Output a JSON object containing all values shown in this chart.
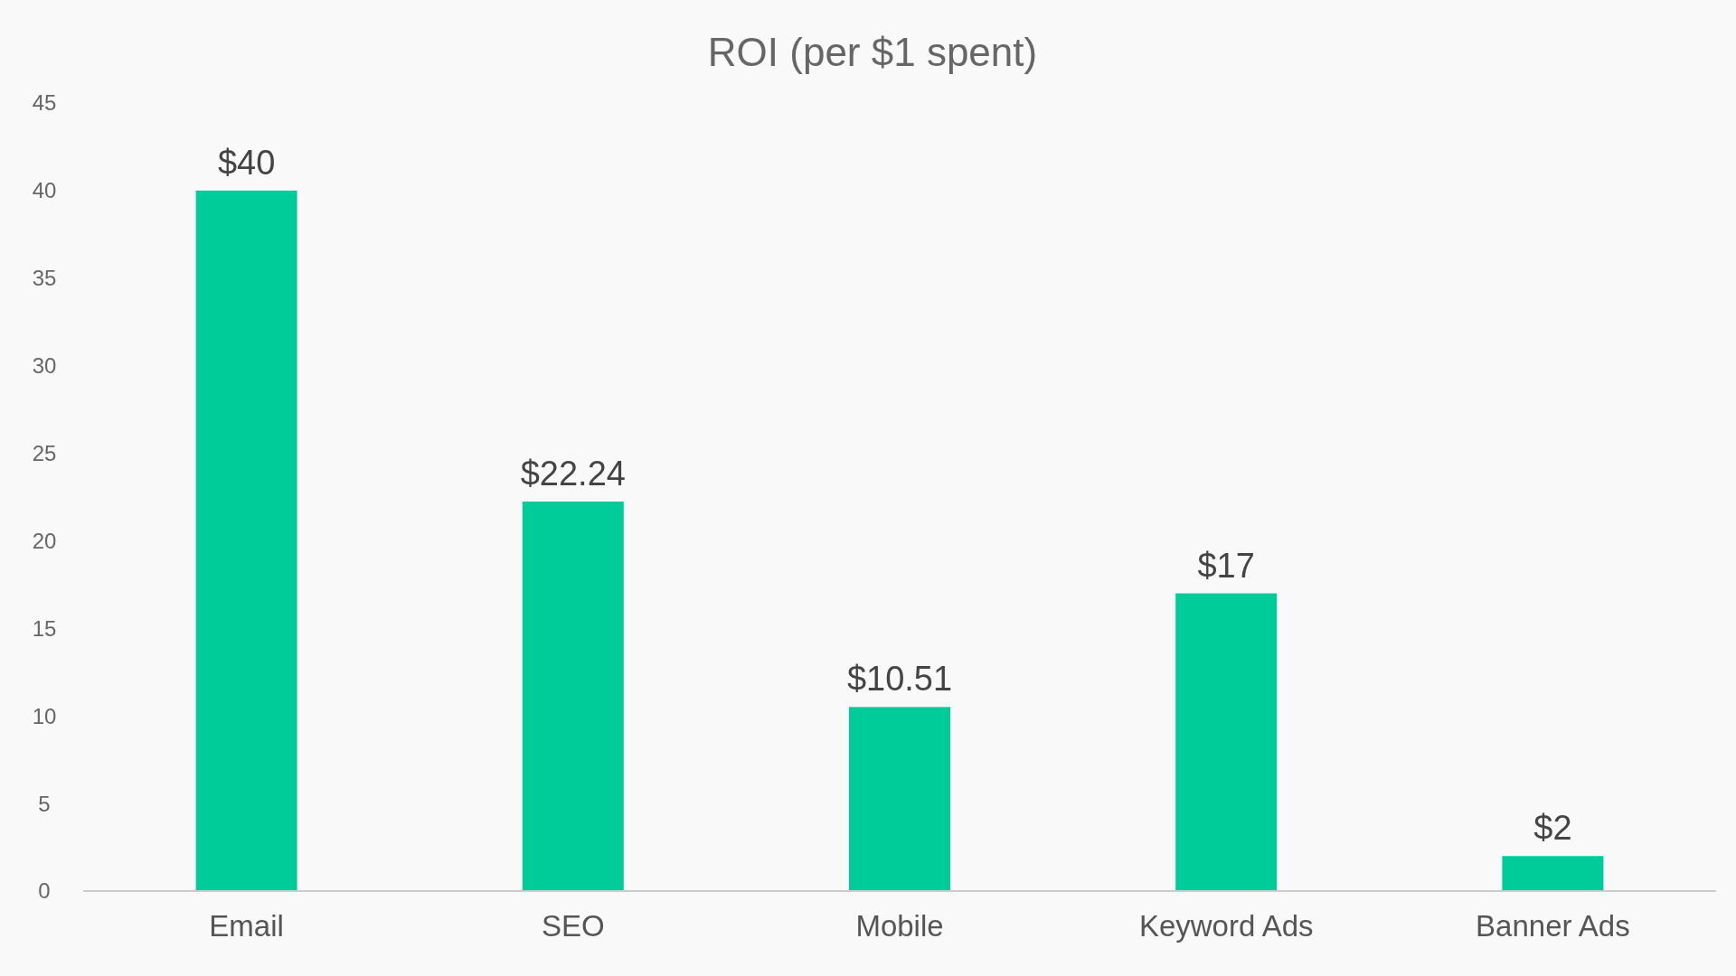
{
  "chart_data": {
    "type": "bar",
    "title": "ROI (per $1 spent)",
    "categories": [
      "Email",
      "SEO",
      "Mobile",
      "Keyword Ads",
      "Banner Ads"
    ],
    "values": [
      40,
      22.24,
      10.51,
      17,
      2
    ],
    "value_labels": [
      "$40",
      "$22.24",
      "$10.51",
      "$17",
      "$2"
    ],
    "color": "#00cc99",
    "ylim": [
      0,
      45
    ],
    "yticks": [
      0,
      5,
      10,
      15,
      20,
      25,
      30,
      35,
      40,
      45
    ],
    "grid": false
  }
}
